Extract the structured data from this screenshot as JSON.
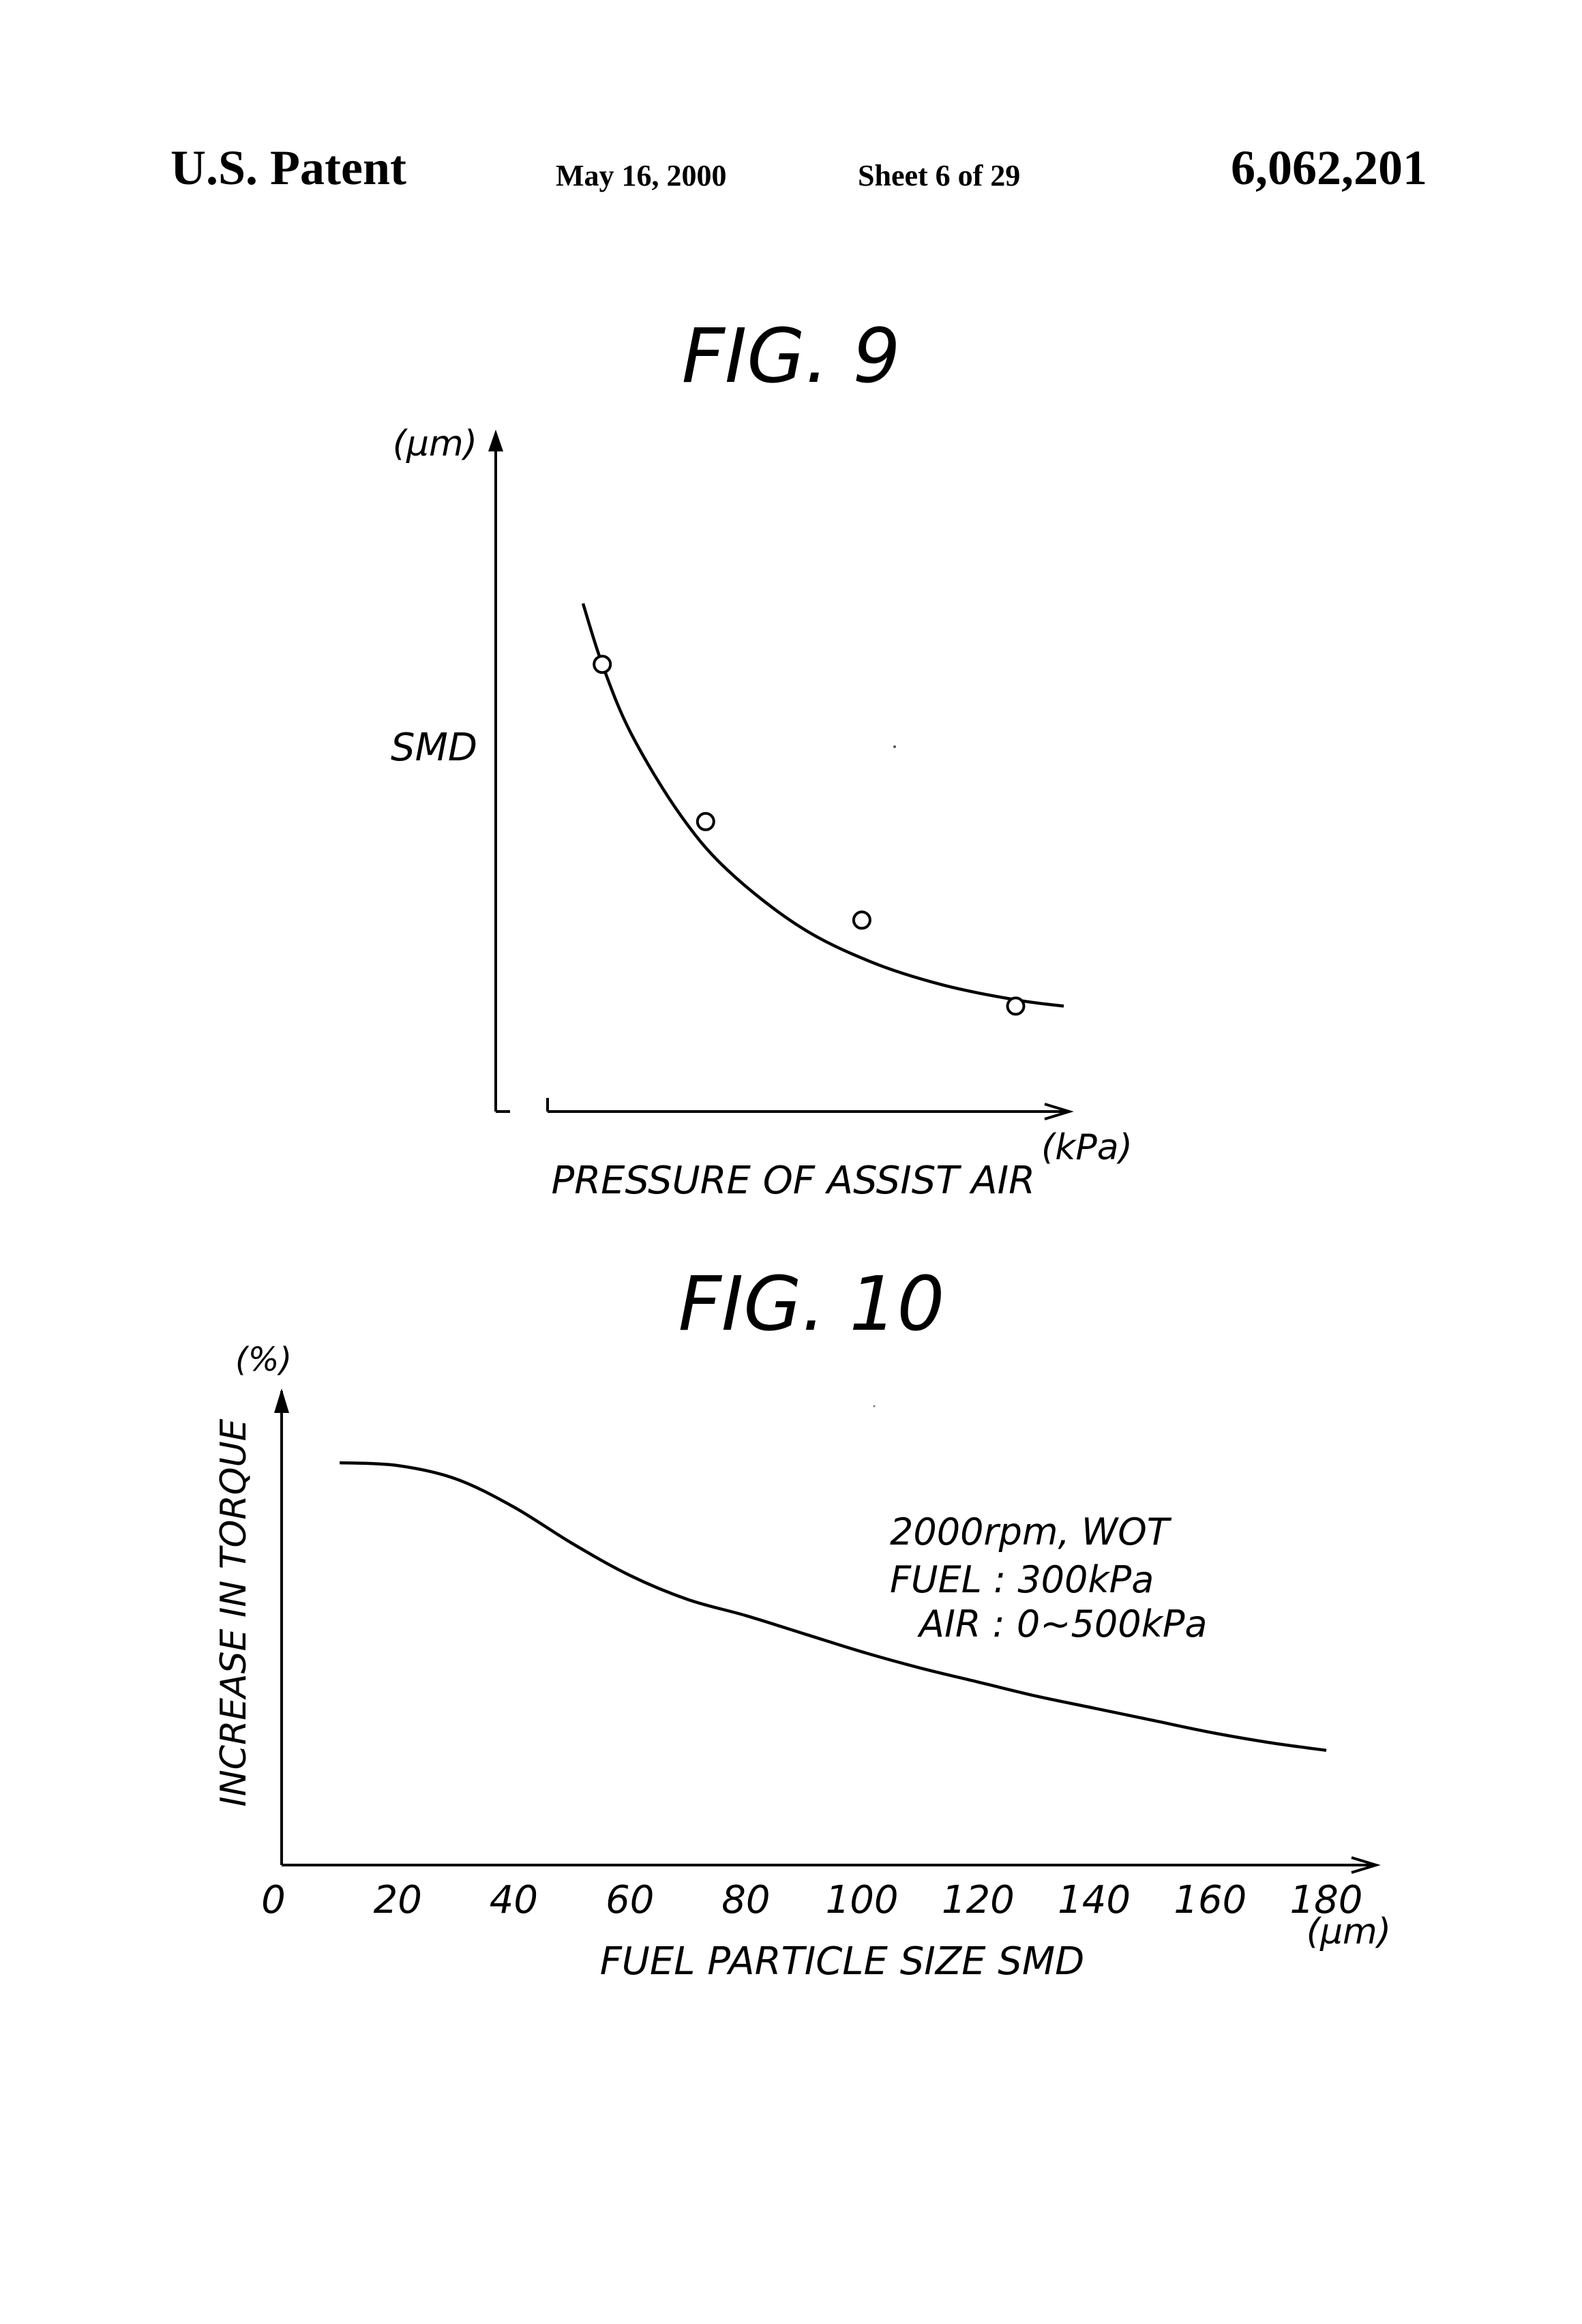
{
  "header": {
    "left": "U.S. Patent",
    "date": "May 16, 2000",
    "sheet": "Sheet 6 of 29",
    "patent_number": "6,062,201"
  },
  "chart_data": [
    {
      "type": "line",
      "figure_label": "FIG. 9",
      "ylabel": "SMD",
      "yunit": "(μm)",
      "xlabel": "PRESSURE OF ASSIST AIR",
      "xunit": "(kPa)",
      "x_ticks": [],
      "y_ticks": [],
      "grid": false,
      "series": [
        {
          "markers": "open-circle",
          "curve": [
            [
              0,
              1.0
            ],
            [
              0.04,
              0.855
            ],
            [
              0.1,
              0.69
            ],
            [
              0.2,
              0.5
            ],
            [
              0.3,
              0.365
            ],
            [
              0.45,
              0.23
            ],
            [
              0.6,
              0.145
            ],
            [
              0.75,
              0.09
            ],
            [
              0.9,
              0.055
            ],
            [
              1.0,
              0.04
            ]
          ],
          "points": [
            [
              0.04,
              0.855
            ],
            [
              0.255,
              0.48
            ],
            [
              0.58,
              0.245
            ],
            [
              0.9,
              0.04
            ]
          ]
        }
      ]
    },
    {
      "type": "line",
      "figure_label": "FIG. 10",
      "ylabel": "INCREASE IN TORQUE",
      "yunit": "(%)",
      "xlabel": "FUEL PARTICLE SIZE SMD",
      "xunit": "(μm)",
      "x_ticks": [
        "0",
        "20",
        "40",
        "60",
        "80",
        "100",
        "120",
        "140",
        "160",
        "180"
      ],
      "xlim": [
        0,
        180
      ],
      "y_ticks": [],
      "grid": false,
      "annotation": [
        "2000rpm, WOT",
        "FUEL : 300kPa",
        "AIR : 0~500kPa"
      ],
      "series": [
        {
          "x": [
            10,
            20,
            30,
            40,
            50,
            60,
            70,
            80,
            90,
            100,
            110,
            120,
            130,
            140,
            150,
            160,
            170,
            180
          ],
          "y": [
            1.0,
            0.993,
            0.96,
            0.89,
            0.8,
            0.72,
            0.66,
            0.62,
            0.575,
            0.53,
            0.49,
            0.455,
            0.42,
            0.39,
            0.36,
            0.33,
            0.305,
            0.285
          ]
        }
      ]
    }
  ]
}
